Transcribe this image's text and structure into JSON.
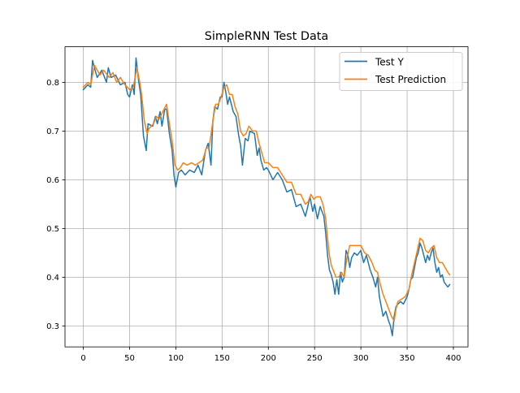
{
  "chart_data": {
    "type": "line",
    "title": "SimpleRNN Test Data",
    "xlabel": "",
    "ylabel": "",
    "xlim": [
      -19.8,
      415.8
    ],
    "ylim": [
      0.257,
      0.873
    ],
    "xticks": [
      0,
      50,
      100,
      150,
      200,
      250,
      300,
      350,
      400
    ],
    "yticks": [
      0.3,
      0.4,
      0.5,
      0.6,
      0.7,
      0.8
    ],
    "grid": true,
    "legend_position": "top-right",
    "series": [
      {
        "name": "Test Y",
        "color": "#1f77b4",
        "points": [
          [
            0,
            0.785
          ],
          [
            5,
            0.795
          ],
          [
            8,
            0.79
          ],
          [
            10,
            0.845
          ],
          [
            12,
            0.83
          ],
          [
            15,
            0.81
          ],
          [
            20,
            0.825
          ],
          [
            25,
            0.8
          ],
          [
            27,
            0.83
          ],
          [
            30,
            0.81
          ],
          [
            35,
            0.815
          ],
          [
            40,
            0.795
          ],
          [
            45,
            0.8
          ],
          [
            48,
            0.775
          ],
          [
            50,
            0.77
          ],
          [
            53,
            0.795
          ],
          [
            55,
            0.775
          ],
          [
            57,
            0.85
          ],
          [
            60,
            0.8
          ],
          [
            62,
            0.775
          ],
          [
            65,
            0.69
          ],
          [
            68,
            0.66
          ],
          [
            70,
            0.715
          ],
          [
            75,
            0.71
          ],
          [
            78,
            0.73
          ],
          [
            80,
            0.715
          ],
          [
            83,
            0.74
          ],
          [
            85,
            0.71
          ],
          [
            88,
            0.745
          ],
          [
            90,
            0.745
          ],
          [
            93,
            0.695
          ],
          [
            96,
            0.66
          ],
          [
            98,
            0.61
          ],
          [
            100,
            0.585
          ],
          [
            103,
            0.615
          ],
          [
            106,
            0.62
          ],
          [
            110,
            0.61
          ],
          [
            115,
            0.62
          ],
          [
            120,
            0.615
          ],
          [
            124,
            0.63
          ],
          [
            128,
            0.61
          ],
          [
            132,
            0.66
          ],
          [
            135,
            0.675
          ],
          [
            138,
            0.63
          ],
          [
            140,
            0.72
          ],
          [
            142,
            0.75
          ],
          [
            145,
            0.745
          ],
          [
            148,
            0.77
          ],
          [
            150,
            0.77
          ],
          [
            152,
            0.8
          ],
          [
            154,
            0.78
          ],
          [
            156,
            0.755
          ],
          [
            158,
            0.77
          ],
          [
            162,
            0.74
          ],
          [
            165,
            0.73
          ],
          [
            168,
            0.69
          ],
          [
            170,
            0.67
          ],
          [
            172,
            0.63
          ],
          [
            175,
            0.685
          ],
          [
            178,
            0.68
          ],
          [
            180,
            0.7
          ],
          [
            185,
            0.695
          ],
          [
            188,
            0.65
          ],
          [
            190,
            0.665
          ],
          [
            192,
            0.64
          ],
          [
            195,
            0.62
          ],
          [
            198,
            0.625
          ],
          [
            200,
            0.62
          ],
          [
            205,
            0.6
          ],
          [
            210,
            0.615
          ],
          [
            215,
            0.6
          ],
          [
            220,
            0.575
          ],
          [
            225,
            0.58
          ],
          [
            230,
            0.545
          ],
          [
            235,
            0.55
          ],
          [
            240,
            0.525
          ],
          [
            242,
            0.54
          ],
          [
            245,
            0.565
          ],
          [
            248,
            0.535
          ],
          [
            250,
            0.55
          ],
          [
            253,
            0.52
          ],
          [
            256,
            0.545
          ],
          [
            260,
            0.525
          ],
          [
            262,
            0.49
          ],
          [
            264,
            0.445
          ],
          [
            266,
            0.415
          ],
          [
            268,
            0.405
          ],
          [
            270,
            0.39
          ],
          [
            272,
            0.365
          ],
          [
            274,
            0.395
          ],
          [
            276,
            0.365
          ],
          [
            278,
            0.41
          ],
          [
            280,
            0.39
          ],
          [
            282,
            0.4
          ],
          [
            284,
            0.455
          ],
          [
            286,
            0.445
          ],
          [
            288,
            0.42
          ],
          [
            290,
            0.44
          ],
          [
            293,
            0.45
          ],
          [
            296,
            0.445
          ],
          [
            300,
            0.455
          ],
          [
            303,
            0.43
          ],
          [
            306,
            0.445
          ],
          [
            308,
            0.43
          ],
          [
            310,
            0.415
          ],
          [
            313,
            0.4
          ],
          [
            316,
            0.38
          ],
          [
            318,
            0.4
          ],
          [
            320,
            0.36
          ],
          [
            322,
            0.34
          ],
          [
            324,
            0.32
          ],
          [
            327,
            0.33
          ],
          [
            330,
            0.31
          ],
          [
            332,
            0.3
          ],
          [
            334,
            0.28
          ],
          [
            336,
            0.32
          ],
          [
            338,
            0.34
          ],
          [
            340,
            0.345
          ],
          [
            343,
            0.35
          ],
          [
            346,
            0.345
          ],
          [
            350,
            0.36
          ],
          [
            352,
            0.375
          ],
          [
            354,
            0.395
          ],
          [
            356,
            0.4
          ],
          [
            358,
            0.42
          ],
          [
            360,
            0.44
          ],
          [
            362,
            0.45
          ],
          [
            364,
            0.47
          ],
          [
            366,
            0.46
          ],
          [
            368,
            0.445
          ],
          [
            370,
            0.43
          ],
          [
            372,
            0.445
          ],
          [
            374,
            0.435
          ],
          [
            376,
            0.45
          ],
          [
            378,
            0.46
          ],
          [
            380,
            0.43
          ],
          [
            382,
            0.41
          ],
          [
            384,
            0.42
          ],
          [
            386,
            0.4
          ],
          [
            388,
            0.405
          ],
          [
            390,
            0.39
          ],
          [
            392,
            0.385
          ],
          [
            394,
            0.38
          ],
          [
            396,
            0.385
          ]
        ]
      },
      {
        "name": "Test Prediction",
        "color": "#ff7f0e",
        "points": [
          [
            0,
            0.79
          ],
          [
            5,
            0.8
          ],
          [
            8,
            0.795
          ],
          [
            12,
            0.835
          ],
          [
            15,
            0.825
          ],
          [
            18,
            0.815
          ],
          [
            22,
            0.825
          ],
          [
            28,
            0.81
          ],
          [
            32,
            0.82
          ],
          [
            36,
            0.8
          ],
          [
            40,
            0.81
          ],
          [
            45,
            0.795
          ],
          [
            50,
            0.785
          ],
          [
            54,
            0.79
          ],
          [
            58,
            0.83
          ],
          [
            61,
            0.8
          ],
          [
            63,
            0.775
          ],
          [
            66,
            0.72
          ],
          [
            69,
            0.695
          ],
          [
            71,
            0.705
          ],
          [
            76,
            0.715
          ],
          [
            79,
            0.73
          ],
          [
            82,
            0.725
          ],
          [
            86,
            0.74
          ],
          [
            90,
            0.755
          ],
          [
            93,
            0.715
          ],
          [
            96,
            0.68
          ],
          [
            99,
            0.63
          ],
          [
            102,
            0.62
          ],
          [
            105,
            0.625
          ],
          [
            108,
            0.635
          ],
          [
            112,
            0.63
          ],
          [
            117,
            0.635
          ],
          [
            121,
            0.63
          ],
          [
            125,
            0.635
          ],
          [
            129,
            0.64
          ],
          [
            133,
            0.665
          ],
          [
            136,
            0.665
          ],
          [
            140,
            0.72
          ],
          [
            143,
            0.755
          ],
          [
            146,
            0.755
          ],
          [
            149,
            0.77
          ],
          [
            152,
            0.79
          ],
          [
            155,
            0.795
          ],
          [
            158,
            0.775
          ],
          [
            161,
            0.775
          ],
          [
            164,
            0.75
          ],
          [
            167,
            0.735
          ],
          [
            170,
            0.7
          ],
          [
            173,
            0.69
          ],
          [
            176,
            0.695
          ],
          [
            179,
            0.71
          ],
          [
            183,
            0.7
          ],
          [
            187,
            0.7
          ],
          [
            190,
            0.675
          ],
          [
            193,
            0.655
          ],
          [
            196,
            0.635
          ],
          [
            200,
            0.635
          ],
          [
            205,
            0.625
          ],
          [
            210,
            0.625
          ],
          [
            215,
            0.61
          ],
          [
            220,
            0.595
          ],
          [
            225,
            0.595
          ],
          [
            230,
            0.57
          ],
          [
            235,
            0.57
          ],
          [
            240,
            0.55
          ],
          [
            243,
            0.555
          ],
          [
            246,
            0.57
          ],
          [
            249,
            0.56
          ],
          [
            252,
            0.565
          ],
          [
            256,
            0.565
          ],
          [
            259,
            0.55
          ],
          [
            262,
            0.52
          ],
          [
            264,
            0.48
          ],
          [
            266,
            0.445
          ],
          [
            268,
            0.425
          ],
          [
            270,
            0.415
          ],
          [
            273,
            0.4
          ],
          [
            276,
            0.4
          ],
          [
            279,
            0.41
          ],
          [
            282,
            0.4
          ],
          [
            285,
            0.44
          ],
          [
            288,
            0.465
          ],
          [
            292,
            0.465
          ],
          [
            296,
            0.465
          ],
          [
            300,
            0.465
          ],
          [
            304,
            0.45
          ],
          [
            308,
            0.445
          ],
          [
            312,
            0.43
          ],
          [
            315,
            0.415
          ],
          [
            318,
            0.41
          ],
          [
            321,
            0.385
          ],
          [
            324,
            0.365
          ],
          [
            327,
            0.35
          ],
          [
            330,
            0.335
          ],
          [
            333,
            0.32
          ],
          [
            336,
            0.31
          ],
          [
            338,
            0.335
          ],
          [
            340,
            0.35
          ],
          [
            344,
            0.355
          ],
          [
            348,
            0.36
          ],
          [
            352,
            0.375
          ],
          [
            355,
            0.405
          ],
          [
            358,
            0.43
          ],
          [
            361,
            0.455
          ],
          [
            364,
            0.48
          ],
          [
            367,
            0.475
          ],
          [
            370,
            0.455
          ],
          [
            373,
            0.45
          ],
          [
            376,
            0.46
          ],
          [
            379,
            0.465
          ],
          [
            382,
            0.44
          ],
          [
            385,
            0.43
          ],
          [
            388,
            0.43
          ],
          [
            391,
            0.42
          ],
          [
            394,
            0.41
          ],
          [
            396,
            0.405
          ]
        ]
      }
    ]
  }
}
